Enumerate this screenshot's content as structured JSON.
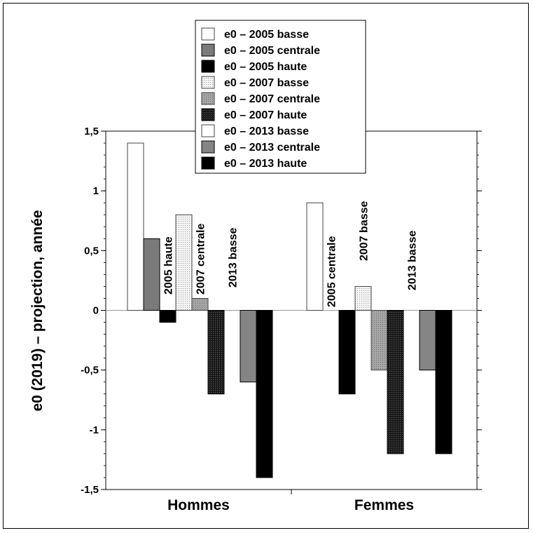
{
  "chart_data": {
    "type": "bar",
    "ylabel": "e0 (2019) – projection, année",
    "ylim": [
      -1.5,
      1.5
    ],
    "yticks": [
      -1.5,
      -1,
      -0.5,
      0,
      0.5,
      1,
      1.5
    ],
    "ytick_labels": [
      "-1,5",
      "-1",
      "-0,5",
      "0",
      "0,5",
      "1",
      "1,5"
    ],
    "categories": [
      "Hommes",
      "Femmes"
    ],
    "grid": false,
    "legend_position": "top-center",
    "series": [
      {
        "name": "e0 – 2005 basse",
        "values": [
          1.4,
          0.9
        ],
        "fill": "#ffffff",
        "pattern": "none"
      },
      {
        "name": "e0 – 2005 centrale",
        "values": [
          0.6,
          0.0
        ],
        "fill": "#7a7a7a",
        "pattern": "none"
      },
      {
        "name": "e0 – 2005 haute",
        "values": [
          -0.1,
          -0.7
        ],
        "fill": "#000000",
        "pattern": "none"
      },
      {
        "name": "e0 – 2007 basse",
        "values": [
          0.8,
          0.2
        ],
        "fill": "#ececec",
        "pattern": "dots"
      },
      {
        "name": "e0 – 2007 centrale",
        "values": [
          0.1,
          -0.5
        ],
        "fill": "#9a9a9a",
        "pattern": "dots"
      },
      {
        "name": "e0 – 2007 haute",
        "values": [
          -0.7,
          -1.2
        ],
        "fill": "#2a2a2a",
        "pattern": "grid"
      },
      {
        "name": "e0 – 2013 basse",
        "values": [
          0.0,
          0.0
        ],
        "fill": "#ffffff",
        "pattern": "none"
      },
      {
        "name": "e0 – 2013 centrale",
        "values": [
          -0.6,
          -0.5
        ],
        "fill": "#858585",
        "pattern": "none"
      },
      {
        "name": "e0 – 2013 haute",
        "values": [
          -1.4,
          -1.2
        ],
        "fill": "#000000",
        "pattern": "none"
      }
    ],
    "annotations": [
      {
        "text": "2005 haute",
        "category": "Hommes",
        "series_index": 2
      },
      {
        "text": "2007 centrale",
        "category": "Hommes",
        "series_index": 4
      },
      {
        "text": "2013 basse",
        "category": "Hommes",
        "series_index": 6
      },
      {
        "text": "2005 centrale",
        "category": "Femmes",
        "series_index": 1
      },
      {
        "text": "2007 basse",
        "category": "Femmes",
        "series_index": 3
      },
      {
        "text": "2013 basse",
        "category": "Femmes",
        "series_index": 6
      }
    ]
  }
}
